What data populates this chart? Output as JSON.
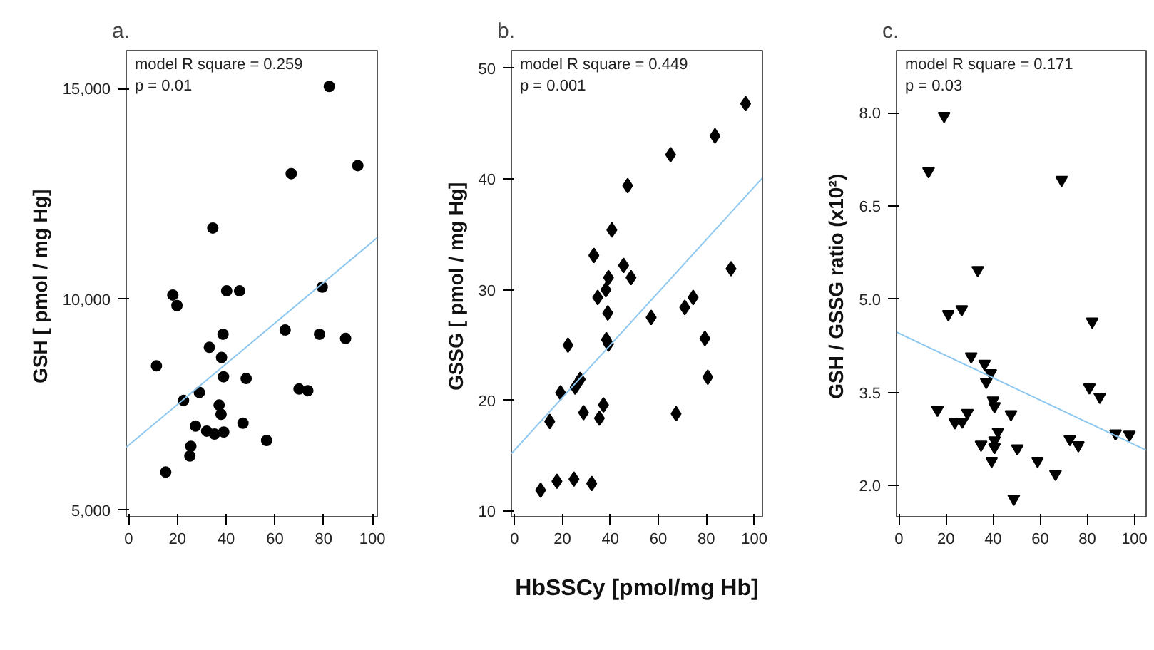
{
  "chart_data": [
    {
      "type": "scatter",
      "title": "a.",
      "ylabel": "GSH  [ pmol / mg Hg]",
      "grid": false,
      "xlim": [
        -1,
        102
      ],
      "ylim": [
        4840,
        15900
      ],
      "xticks": [
        0,
        20,
        40,
        60,
        80,
        100
      ],
      "yticks": [
        {
          "value": 5000,
          "label": "5,000"
        },
        {
          "value": 10000,
          "label": "10,000"
        },
        {
          "value": 15000,
          "label": "15,000"
        }
      ],
      "annotations": [
        "model R square = 0.259",
        "p = 0.01"
      ],
      "series": [
        {
          "marker": "circle",
          "color": "#000000",
          "x": [
            82.3,
            94,
            66.7,
            34.5,
            18.1,
            19.8,
            40.2,
            45.5,
            79.4,
            64.2,
            78.3,
            89,
            38.7,
            33.1,
            38.1,
            11.4,
            38.9,
            48.2,
            69.9,
            73.5,
            22.5,
            29,
            37.1,
            37.9,
            27.4,
            46.9,
            32,
            35.2,
            39,
            56.6,
            25.5,
            25.1,
            15.2
          ],
          "values": [
            15050,
            13170,
            12980,
            11690,
            10100,
            9850,
            10200,
            10200,
            10290,
            9270,
            9170,
            9070,
            9170,
            8860,
            8620,
            8420,
            8160,
            8120,
            7870,
            7830,
            7600,
            7790,
            7490,
            7270,
            6990,
            7060,
            6870,
            6800,
            6850,
            6650,
            6510,
            6280,
            5900
          ]
        },
        {
          "type": "line",
          "color": "#8ec8f0",
          "x": [
            -1,
            102
          ],
          "values": [
            6490,
            11460
          ],
          "marker": "none"
        }
      ]
    },
    {
      "type": "scatter",
      "title": "b.",
      "xlabel": "HbSSCy [pmol/mg Hb]",
      "ylabel": "GSSG  [ pmol / mg Hg]",
      "grid": false,
      "xlim": [
        -1.3,
        103.4
      ],
      "ylim": [
        9.5,
        51.6
      ],
      "xticks": [
        0,
        20,
        40,
        60,
        80,
        100
      ],
      "yticks": [
        10,
        20,
        30,
        40,
        50
      ],
      "annotations": [
        "model R square = 0.449",
        "p = 0.001"
      ],
      "series": [
        {
          "marker": "diamond",
          "color": "#000000",
          "x": [
            96.4,
            83.6,
            65.1,
            47.2,
            40.6,
            33.1,
            45.5,
            39.2,
            48.6,
            38.1,
            34.7,
            38.9,
            57,
            71,
            74.5,
            90.3,
            38.3,
            39.2,
            22.3,
            79.4,
            80.6,
            27.4,
            25.3,
            19.2,
            37.1,
            28.8,
            35.4,
            67.4,
            14.7,
            10.9,
            17.7,
            24.8,
            32.2
          ],
          "values": [
            46.8,
            43.9,
            42.2,
            39.4,
            35.4,
            33.1,
            32.2,
            31.1,
            31.1,
            30.0,
            29.3,
            27.9,
            27.5,
            28.4,
            29.3,
            31.9,
            25.5,
            25.1,
            25.0,
            25.6,
            22.1,
            21.9,
            21.2,
            20.7,
            19.6,
            18.9,
            18.4,
            18.8,
            18.1,
            11.9,
            12.7,
            12.9,
            12.5
          ]
        },
        {
          "type": "line",
          "color": "#8ec8f0",
          "x": [
            -1.3,
            103.4
          ],
          "values": [
            15.2,
            40.1
          ],
          "marker": "none"
        }
      ]
    },
    {
      "type": "scatter",
      "title": "c.",
      "ylabel": "GSH / GSSG ratio  (x10²)",
      "grid": false,
      "xlim": [
        -1,
        105
      ],
      "ylim": [
        1.5,
        9.0
      ],
      "xticks": [
        0,
        20,
        40,
        60,
        80,
        100
      ],
      "yticks": [
        {
          "value": 2.0,
          "label": "2.0"
        },
        {
          "value": 3.5,
          "label": "3.5"
        },
        {
          "value": 5.0,
          "label": "5.0"
        },
        {
          "value": 6.5,
          "label": "6.5"
        },
        {
          "value": 8.0,
          "label": "8.0"
        }
      ],
      "annotations": [
        "model R square = 0.171",
        "p = 0.03"
      ],
      "series": [
        {
          "marker": "triangle",
          "color": "#000000",
          "x": [
            19.2,
            12.6,
            69.1,
            33.5,
            21,
            26.7,
            82.1,
            30.7,
            36.4,
            39,
            37.1,
            80.9,
            85.3,
            16.4,
            23.8,
            26.9,
            29.1,
            40,
            40.6,
            47.6,
            42.1,
            40.6,
            34.9,
            40.6,
            50.3,
            72.6,
            76.2,
            92,
            97.9,
            39.4,
            58.9,
            66.5,
            48.8
          ],
          "values": [
            7.95,
            7.06,
            6.92,
            5.47,
            4.76,
            4.84,
            4.64,
            4.08,
            3.96,
            3.81,
            3.67,
            3.58,
            3.43,
            3.22,
            3.02,
            3.03,
            3.17,
            3.37,
            3.28,
            3.15,
            2.87,
            2.73,
            2.66,
            2.62,
            2.6,
            2.75,
            2.65,
            2.84,
            2.82,
            2.4,
            2.4,
            2.19,
            1.79
          ]
        },
        {
          "type": "line",
          "color": "#8ec8f0",
          "x": [
            -1,
            105
          ],
          "values": [
            4.47,
            2.57
          ],
          "marker": "none"
        }
      ]
    }
  ]
}
